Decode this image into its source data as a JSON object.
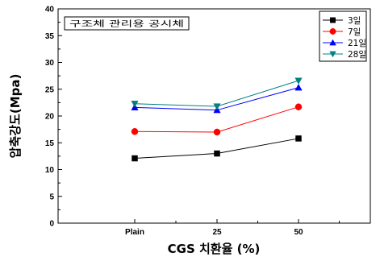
{
  "chart_data": {
    "type": "line",
    "categories": [
      "Plain",
      "25",
      "50"
    ],
    "xlabel": "CGS 치환율 (%)",
    "ylabel": "압축강도(Mpa)",
    "ylim": [
      0,
      40
    ],
    "yticks": [
      0,
      5,
      10,
      15,
      20,
      25,
      30,
      35,
      40
    ],
    "grid": false,
    "legend_position": "top-right",
    "annotation": "구조체 관리용 공시체",
    "series": [
      {
        "name": "3일",
        "values": [
          12.1,
          13.0,
          15.8
        ],
        "color": "#000000",
        "marker": "square"
      },
      {
        "name": "7일",
        "values": [
          17.1,
          17.0,
          21.7
        ],
        "color": "#ff0000",
        "marker": "circle"
      },
      {
        "name": "21일",
        "values": [
          21.6,
          21.1,
          25.3
        ],
        "color": "#0000ff",
        "marker": "triangle-up"
      },
      {
        "name": "28일",
        "values": [
          22.3,
          21.8,
          26.6
        ],
        "color": "#008080",
        "marker": "triangle-down"
      }
    ]
  }
}
